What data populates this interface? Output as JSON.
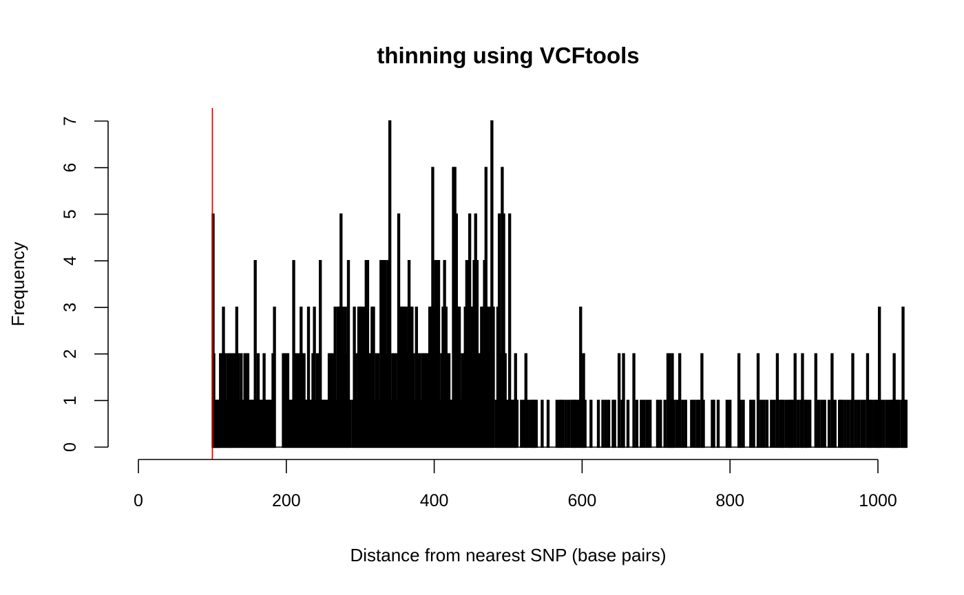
{
  "chart_data": {
    "type": "bar",
    "title": "thinning using VCFtools",
    "xlabel": "Distance from nearest SNP (base pairs)",
    "ylabel": "Frequency",
    "xlim": [
      0,
      1040
    ],
    "ylim": [
      0,
      7
    ],
    "xticks": [
      0,
      200,
      400,
      600,
      800,
      1000
    ],
    "yticks": [
      0,
      1,
      2,
      3,
      4,
      5,
      6,
      7
    ],
    "grid": false,
    "bar_color": "#000000",
    "reference_line": {
      "x": 100,
      "color": "#cc0000"
    },
    "bars": [
      [
        101,
        5
      ],
      [
        102,
        2
      ],
      [
        103,
        1
      ],
      [
        104,
        1
      ],
      [
        105,
        1
      ],
      [
        106,
        1
      ],
      [
        107,
        1
      ],
      [
        108,
        1
      ],
      [
        110,
        1
      ],
      [
        111,
        2
      ],
      [
        113,
        2
      ],
      [
        115,
        3
      ],
      [
        117,
        2
      ],
      [
        119,
        1
      ],
      [
        121,
        2
      ],
      [
        123,
        2
      ],
      [
        124,
        1
      ],
      [
        126,
        2
      ],
      [
        127,
        2
      ],
      [
        129,
        1
      ],
      [
        131,
        2
      ],
      [
        133,
        3
      ],
      [
        135,
        2
      ],
      [
        137,
        1
      ],
      [
        139,
        2
      ],
      [
        142,
        1
      ],
      [
        144,
        2
      ],
      [
        146,
        2
      ],
      [
        148,
        2
      ],
      [
        150,
        1
      ],
      [
        152,
        1
      ],
      [
        154,
        1
      ],
      [
        156,
        1
      ],
      [
        158,
        4
      ],
      [
        160,
        1
      ],
      [
        162,
        2
      ],
      [
        164,
        1
      ],
      [
        166,
        1
      ],
      [
        168,
        1
      ],
      [
        170,
        2
      ],
      [
        172,
        1
      ],
      [
        174,
        1
      ],
      [
        176,
        1
      ],
      [
        178,
        1
      ],
      [
        180,
        1
      ],
      [
        182,
        2
      ],
      [
        184,
        3
      ],
      [
        196,
        2
      ],
      [
        198,
        2
      ],
      [
        200,
        2
      ],
      [
        202,
        2
      ],
      [
        204,
        1
      ],
      [
        206,
        1
      ],
      [
        208,
        1
      ],
      [
        210,
        4
      ],
      [
        212,
        2
      ],
      [
        214,
        2
      ],
      [
        216,
        2
      ],
      [
        218,
        2
      ],
      [
        220,
        3
      ],
      [
        222,
        2
      ],
      [
        224,
        2
      ],
      [
        226,
        1
      ],
      [
        228,
        1
      ],
      [
        230,
        3
      ],
      [
        232,
        1
      ],
      [
        234,
        1
      ],
      [
        236,
        2
      ],
      [
        238,
        3
      ],
      [
        240,
        1
      ],
      [
        242,
        2
      ],
      [
        244,
        1
      ],
      [
        246,
        4
      ],
      [
        248,
        1
      ],
      [
        250,
        1
      ],
      [
        252,
        1
      ],
      [
        254,
        1
      ],
      [
        256,
        1
      ],
      [
        258,
        2
      ],
      [
        260,
        2
      ],
      [
        262,
        2
      ],
      [
        264,
        1
      ],
      [
        266,
        3
      ],
      [
        268,
        1
      ],
      [
        270,
        3
      ],
      [
        272,
        3
      ],
      [
        274,
        5
      ],
      [
        276,
        3
      ],
      [
        278,
        2
      ],
      [
        280,
        3
      ],
      [
        282,
        2
      ],
      [
        284,
        4
      ],
      [
        286,
        1
      ],
      [
        290,
        1
      ],
      [
        292,
        3
      ],
      [
        294,
        2
      ],
      [
        296,
        1
      ],
      [
        298,
        3
      ],
      [
        300,
        3
      ],
      [
        302,
        3
      ],
      [
        304,
        1
      ],
      [
        306,
        3
      ],
      [
        308,
        4
      ],
      [
        310,
        4
      ],
      [
        312,
        2
      ],
      [
        314,
        2
      ],
      [
        316,
        3
      ],
      [
        318,
        3
      ],
      [
        320,
        1
      ],
      [
        322,
        2
      ],
      [
        324,
        2
      ],
      [
        326,
        1
      ],
      [
        328,
        4
      ],
      [
        330,
        4
      ],
      [
        332,
        4
      ],
      [
        334,
        4
      ],
      [
        336,
        2
      ],
      [
        338,
        4
      ],
      [
        340,
        7
      ],
      [
        342,
        1
      ],
      [
        344,
        2
      ],
      [
        346,
        2
      ],
      [
        348,
        2
      ],
      [
        350,
        1
      ],
      [
        352,
        5
      ],
      [
        354,
        3
      ],
      [
        356,
        3
      ],
      [
        358,
        3
      ],
      [
        360,
        3
      ],
      [
        362,
        3
      ],
      [
        364,
        2
      ],
      [
        366,
        4
      ],
      [
        368,
        3
      ],
      [
        370,
        3
      ],
      [
        372,
        2
      ],
      [
        374,
        1
      ],
      [
        376,
        3
      ],
      [
        378,
        2
      ],
      [
        380,
        2
      ],
      [
        382,
        1
      ],
      [
        384,
        2
      ],
      [
        386,
        2
      ],
      [
        388,
        2
      ],
      [
        390,
        2
      ],
      [
        392,
        2
      ],
      [
        394,
        3
      ],
      [
        396,
        3
      ],
      [
        398,
        6
      ],
      [
        400,
        3
      ],
      [
        402,
        4
      ],
      [
        404,
        4
      ],
      [
        406,
        4
      ],
      [
        408,
        1
      ],
      [
        410,
        2
      ],
      [
        412,
        3
      ],
      [
        414,
        4
      ],
      [
        416,
        3
      ],
      [
        418,
        2
      ],
      [
        420,
        2
      ],
      [
        422,
        1
      ],
      [
        424,
        1
      ],
      [
        426,
        6
      ],
      [
        428,
        6
      ],
      [
        430,
        5
      ],
      [
        432,
        3
      ],
      [
        434,
        3
      ],
      [
        436,
        1
      ],
      [
        438,
        2
      ],
      [
        440,
        2
      ],
      [
        442,
        3
      ],
      [
        444,
        4
      ],
      [
        446,
        3
      ],
      [
        448,
        5
      ],
      [
        450,
        3
      ],
      [
        452,
        3
      ],
      [
        454,
        4
      ],
      [
        456,
        5
      ],
      [
        458,
        4
      ],
      [
        460,
        2
      ],
      [
        462,
        2
      ],
      [
        464,
        3
      ],
      [
        466,
        3
      ],
      [
        468,
        4
      ],
      [
        470,
        6
      ],
      [
        472,
        3
      ],
      [
        474,
        2
      ],
      [
        476,
        3
      ],
      [
        478,
        7
      ],
      [
        480,
        3
      ],
      [
        484,
        1
      ],
      [
        486,
        3
      ],
      [
        488,
        5
      ],
      [
        490,
        2
      ],
      [
        492,
        6
      ],
      [
        494,
        5
      ],
      [
        496,
        2
      ],
      [
        498,
        1
      ],
      [
        500,
        1
      ],
      [
        502,
        5
      ],
      [
        504,
        1
      ],
      [
        506,
        1
      ],
      [
        508,
        1
      ],
      [
        510,
        2
      ],
      [
        512,
        1
      ],
      [
        518,
        1
      ],
      [
        522,
        1
      ],
      [
        524,
        2
      ],
      [
        526,
        1
      ],
      [
        530,
        1
      ],
      [
        532,
        1
      ],
      [
        534,
        1
      ],
      [
        536,
        1
      ],
      [
        538,
        1
      ],
      [
        546,
        1
      ],
      [
        554,
        1
      ],
      [
        566,
        1
      ],
      [
        570,
        1
      ],
      [
        572,
        1
      ],
      [
        574,
        1
      ],
      [
        578,
        1
      ],
      [
        582,
        1
      ],
      [
        586,
        1
      ],
      [
        588,
        1
      ],
      [
        590,
        1
      ],
      [
        592,
        1
      ],
      [
        596,
        1
      ],
      [
        598,
        3
      ],
      [
        600,
        1
      ],
      [
        602,
        2
      ],
      [
        604,
        1
      ],
      [
        612,
        1
      ],
      [
        622,
        1
      ],
      [
        628,
        1
      ],
      [
        632,
        1
      ],
      [
        636,
        1
      ],
      [
        642,
        1
      ],
      [
        644,
        1
      ],
      [
        650,
        2
      ],
      [
        654,
        1
      ],
      [
        656,
        2
      ],
      [
        662,
        1
      ],
      [
        670,
        2
      ],
      [
        674,
        1
      ],
      [
        680,
        1
      ],
      [
        684,
        1
      ],
      [
        688,
        1
      ],
      [
        692,
        1
      ],
      [
        702,
        1
      ],
      [
        706,
        1
      ],
      [
        712,
        1
      ],
      [
        716,
        2
      ],
      [
        718,
        2
      ],
      [
        720,
        1
      ],
      [
        722,
        2
      ],
      [
        724,
        1
      ],
      [
        728,
        1
      ],
      [
        732,
        2
      ],
      [
        736,
        1
      ],
      [
        740,
        1
      ],
      [
        748,
        1
      ],
      [
        752,
        1
      ],
      [
        756,
        1
      ],
      [
        758,
        1
      ],
      [
        762,
        2
      ],
      [
        764,
        1
      ],
      [
        776,
        1
      ],
      [
        778,
        1
      ],
      [
        784,
        1
      ],
      [
        796,
        1
      ],
      [
        800,
        1
      ],
      [
        812,
        2
      ],
      [
        814,
        1
      ],
      [
        818,
        1
      ],
      [
        828,
        1
      ],
      [
        832,
        1
      ],
      [
        838,
        2
      ],
      [
        842,
        1
      ],
      [
        846,
        1
      ],
      [
        850,
        1
      ],
      [
        856,
        1
      ],
      [
        860,
        1
      ],
      [
        864,
        2
      ],
      [
        868,
        1
      ],
      [
        870,
        1
      ],
      [
        872,
        1
      ],
      [
        876,
        1
      ],
      [
        880,
        1
      ],
      [
        882,
        1
      ],
      [
        884,
        1
      ],
      [
        888,
        2
      ],
      [
        892,
        1
      ],
      [
        896,
        1
      ],
      [
        898,
        2
      ],
      [
        902,
        1
      ],
      [
        904,
        1
      ],
      [
        908,
        1
      ],
      [
        916,
        2
      ],
      [
        920,
        1
      ],
      [
        924,
        1
      ],
      [
        928,
        1
      ],
      [
        934,
        1
      ],
      [
        938,
        2
      ],
      [
        942,
        1
      ],
      [
        948,
        1
      ],
      [
        950,
        1
      ],
      [
        952,
        1
      ],
      [
        956,
        1
      ],
      [
        960,
        1
      ],
      [
        964,
        1
      ],
      [
        966,
        2
      ],
      [
        970,
        1
      ],
      [
        974,
        1
      ],
      [
        978,
        1
      ],
      [
        982,
        1
      ],
      [
        986,
        2
      ],
      [
        988,
        1
      ],
      [
        990,
        1
      ],
      [
        992,
        1
      ],
      [
        996,
        1
      ],
      [
        998,
        1
      ],
      [
        1000,
        1
      ],
      [
        1002,
        3
      ],
      [
        1004,
        1
      ],
      [
        1008,
        1
      ],
      [
        1012,
        1
      ],
      [
        1016,
        1
      ],
      [
        1018,
        1
      ],
      [
        1020,
        1
      ],
      [
        1022,
        2
      ],
      [
        1024,
        1
      ],
      [
        1026,
        1
      ],
      [
        1028,
        1
      ],
      [
        1032,
        1
      ],
      [
        1034,
        3
      ],
      [
        1036,
        1
      ],
      [
        1038,
        1
      ]
    ]
  }
}
